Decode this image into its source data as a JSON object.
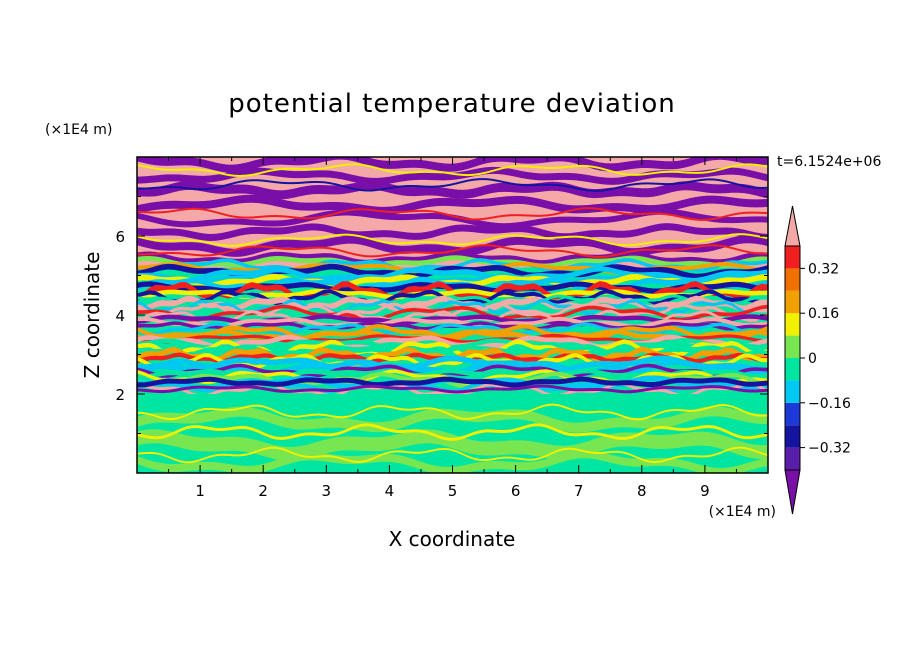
{
  "chart_data": {
    "type": "heatmap",
    "title": "potential temperature deviation",
    "xlabel": "X coordinate",
    "ylabel": "Z coordinate",
    "x_unit": "(×1E4 m)",
    "y_unit": "(×1E4 m)",
    "time_label": "t=6.1524e+06",
    "x_ticks": [
      "1",
      "2",
      "3",
      "4",
      "5",
      "6",
      "7",
      "8",
      "9"
    ],
    "y_ticks": [
      "2",
      "4",
      "6"
    ],
    "xlim": [
      0,
      10
    ],
    "ylim": [
      0,
      8
    ],
    "colorbar": {
      "levels": [
        -0.48,
        -0.4,
        -0.32,
        -0.24,
        -0.16,
        -0.08,
        0,
        0.08,
        0.16,
        0.24,
        0.32,
        0.4,
        0.48
      ],
      "colors": [
        "#7a0ea8",
        "#5a1faa",
        "#1414a0",
        "#1c3ad8",
        "#00c8f0",
        "#00e6a0",
        "#78e650",
        "#f0f000",
        "#f0a000",
        "#f07000",
        "#f02020",
        "#f08080",
        "#f4a8a8"
      ],
      "tick_labels": [
        "0.32",
        "0.16",
        "0",
        "-0.16",
        "-0.32"
      ],
      "extend": "both"
    },
    "grid": false
  }
}
